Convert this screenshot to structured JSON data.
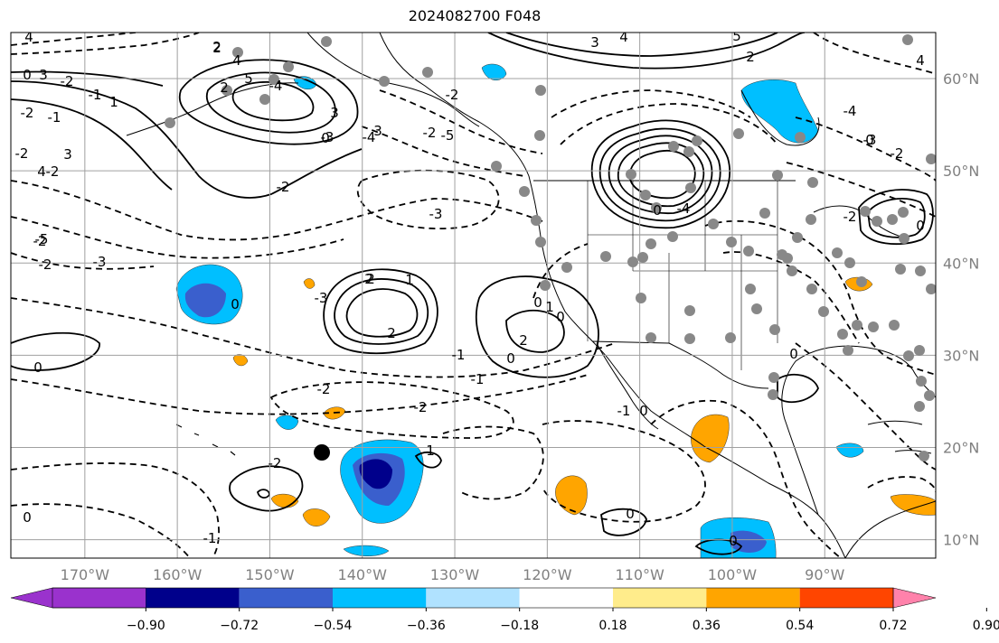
{
  "title": "2024082700 F048",
  "map": {
    "lon_labels": [
      "170°W",
      "160°W",
      "150°W",
      "140°W",
      "130°W",
      "120°W",
      "110°W",
      "100°W",
      "90°W"
    ],
    "lat_labels": [
      "60°N",
      "50°N",
      "40°N",
      "30°N",
      "20°N",
      "10°N"
    ],
    "extent": {
      "lon_min": -178,
      "lon_max": -78,
      "lat_min": 8,
      "lat_max": 65
    },
    "contour_labels": [
      "4",
      "3",
      "-2",
      "-1",
      "1",
      "2",
      "3",
      "4",
      "-5",
      "-2",
      "-3",
      "-2",
      "-2",
      "0",
      "-2",
      "-1",
      "2",
      "4",
      "5",
      "-4",
      "2",
      "3",
      "-2",
      "-5",
      "-4",
      "-3",
      "-2",
      "3",
      "0",
      "-2",
      "4",
      "3",
      "2",
      "5",
      "4",
      "-4",
      "-3",
      "-2",
      "-3",
      "2",
      "1",
      "-1",
      "0",
      "-2",
      "1",
      "-1",
      "2",
      "-3",
      "-2",
      "0",
      "1",
      "-2",
      "0",
      "0",
      "-1",
      "-2",
      "0",
      "0",
      "0",
      "-1",
      "0",
      "0",
      "0",
      "0",
      "0",
      "0",
      "2",
      "2",
      "-4",
      "-2"
    ],
    "marker_color": "#888888",
    "storm_marker_color": "#000000"
  },
  "colorbar": {
    "colors": [
      "#9a32cd",
      "#00008b",
      "#3a5fcd",
      "#00bfff",
      "#b0e2ff",
      "#ffffff",
      "#ffec8b",
      "#ffa500",
      "#ff4500",
      "#b22222",
      "#ff82ab"
    ],
    "ticks": [
      "−0.90",
      "−0.72",
      "−0.54",
      "−0.36",
      "−0.18",
      "0.18",
      "0.36",
      "0.54",
      "0.72",
      "0.90"
    ]
  },
  "style": {
    "grid_color": "#a0a0a0",
    "tick_color": "#808080"
  }
}
